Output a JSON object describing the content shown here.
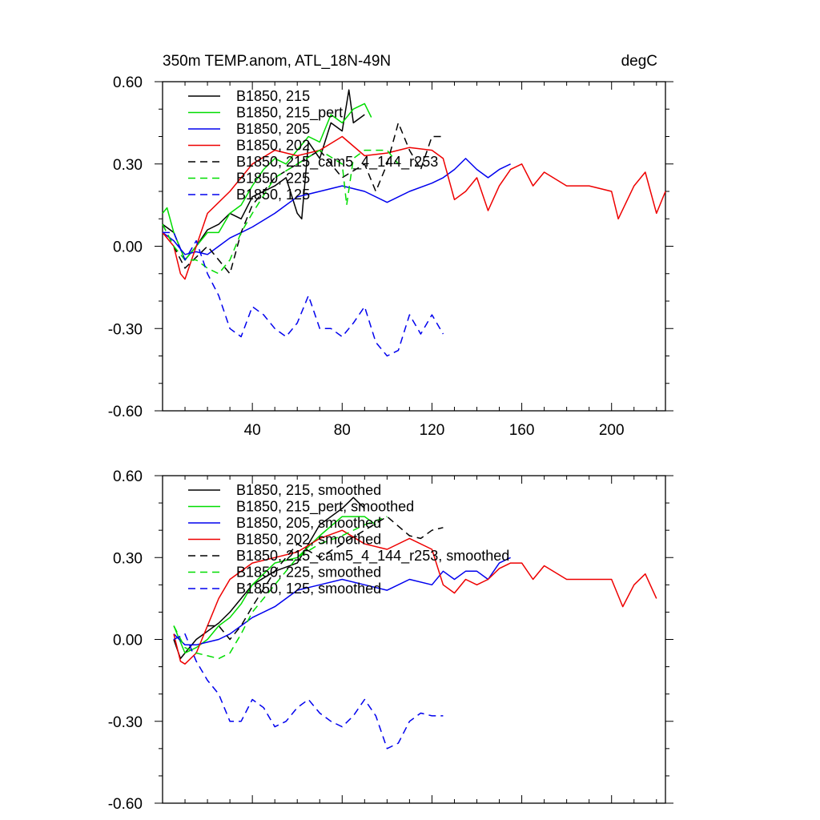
{
  "chart_data": [
    {
      "type": "line",
      "title": "350m TEMP.anom, ATL_18N-49N",
      "units_label": "degC",
      "xlabel": "",
      "ylabel": "",
      "xlim": [
        0,
        224
      ],
      "ylim": [
        -0.6,
        0.6
      ],
      "xticks": [
        40,
        80,
        120,
        160,
        200
      ],
      "xtick_labels": [
        "40",
        "80",
        "120",
        "160",
        "200"
      ],
      "yticks": [
        0.6,
        0.3,
        0.0,
        -0.3,
        -0.6
      ],
      "ytick_labels": [
        "0.60",
        "0.30",
        "0.00",
        "-0.30",
        "-0.60"
      ],
      "grid": false,
      "legend_position": "top-left",
      "series": [
        {
          "name": "B1850, 215",
          "color": "#000000",
          "dash": "solid",
          "x": [
            0,
            5,
            10,
            15,
            20,
            25,
            30,
            35,
            40,
            45,
            50,
            55,
            60,
            62,
            65,
            70,
            75,
            80,
            83,
            85,
            90
          ],
          "y": [
            0.08,
            0.05,
            -0.05,
            0.0,
            0.06,
            0.08,
            0.12,
            0.1,
            0.18,
            0.2,
            0.22,
            0.25,
            0.12,
            0.1,
            0.38,
            0.32,
            0.45,
            0.42,
            0.57,
            0.45,
            0.48
          ]
        },
        {
          "name": "B1850, 215_pert",
          "color": "#00dd00",
          "dash": "solid",
          "x": [
            0,
            2,
            5,
            10,
            15,
            20,
            25,
            30,
            35,
            40,
            45,
            50,
            55,
            60,
            65,
            70,
            75,
            80,
            85,
            90,
            93
          ],
          "y": [
            0.12,
            0.14,
            0.05,
            -0.05,
            0.0,
            0.05,
            0.05,
            0.12,
            0.15,
            0.22,
            0.28,
            0.32,
            0.3,
            0.35,
            0.4,
            0.38,
            0.48,
            0.45,
            0.5,
            0.52,
            0.47
          ]
        },
        {
          "name": "B1850, 205",
          "color": "#0000ee",
          "dash": "solid",
          "x": [
            0,
            5,
            10,
            15,
            20,
            25,
            30,
            35,
            40,
            50,
            60,
            70,
            80,
            90,
            100,
            110,
            120,
            125,
            130,
            135,
            140,
            145,
            150,
            155
          ],
          "y": [
            0.05,
            0.02,
            -0.03,
            -0.02,
            -0.03,
            0.0,
            0.03,
            0.05,
            0.07,
            0.12,
            0.18,
            0.2,
            0.22,
            0.2,
            0.16,
            0.2,
            0.23,
            0.25,
            0.28,
            0.32,
            0.28,
            0.25,
            0.28,
            0.3
          ]
        },
        {
          "name": "B1850, 202",
          "color": "#ee0000",
          "dash": "solid",
          "x": [
            0,
            5,
            8,
            10,
            15,
            20,
            30,
            40,
            50,
            60,
            70,
            80,
            90,
            100,
            110,
            120,
            125,
            130,
            135,
            140,
            145,
            150,
            155,
            160,
            165,
            170,
            180,
            190,
            200,
            203,
            210,
            215,
            220,
            224
          ],
          "y": [
            0.05,
            0.0,
            -0.1,
            -0.12,
            0.0,
            0.12,
            0.2,
            0.3,
            0.35,
            0.33,
            0.35,
            0.4,
            0.33,
            0.34,
            0.36,
            0.35,
            0.32,
            0.17,
            0.2,
            0.25,
            0.13,
            0.22,
            0.28,
            0.3,
            0.22,
            0.27,
            0.22,
            0.22,
            0.2,
            0.1,
            0.22,
            0.27,
            0.12,
            0.2
          ]
        },
        {
          "name": "B1850, 215_cam5_4_144_r253",
          "color": "#000000",
          "dash": "dashed",
          "x": [
            0,
            10,
            20,
            25,
            30,
            35,
            40,
            50,
            60,
            70,
            80,
            90,
            95,
            100,
            105,
            110,
            115,
            120,
            125
          ],
          "y": [
            0.08,
            -0.08,
            0.0,
            -0.05,
            -0.1,
            0.05,
            0.15,
            0.25,
            0.3,
            0.35,
            0.25,
            0.3,
            0.2,
            0.3,
            0.45,
            0.35,
            0.28,
            0.4,
            0.4
          ]
        },
        {
          "name": "B1850, 225",
          "color": "#00dd00",
          "dash": "dashed",
          "x": [
            0,
            5,
            10,
            15,
            20,
            25,
            30,
            35,
            40,
            50,
            60,
            70,
            80,
            82,
            85,
            90,
            95,
            100,
            105
          ],
          "y": [
            0.08,
            0.0,
            -0.05,
            -0.05,
            -0.08,
            -0.1,
            -0.05,
            0.05,
            0.12,
            0.25,
            0.3,
            0.35,
            0.3,
            0.15,
            0.32,
            0.35,
            0.35,
            0.35,
            0.3
          ]
        },
        {
          "name": "B1850, 125",
          "color": "#0000ee",
          "dash": "dashed",
          "x": [
            0,
            5,
            10,
            15,
            20,
            25,
            30,
            35,
            40,
            45,
            50,
            55,
            60,
            65,
            70,
            75,
            80,
            85,
            90,
            95,
            100,
            105,
            110,
            115,
            120,
            125
          ],
          "y": [
            0.05,
            0.05,
            -0.05,
            0.02,
            -0.1,
            -0.18,
            -0.3,
            -0.33,
            -0.22,
            -0.25,
            -0.3,
            -0.33,
            -0.28,
            -0.18,
            -0.3,
            -0.3,
            -0.33,
            -0.28,
            -0.22,
            -0.35,
            -0.4,
            -0.38,
            -0.25,
            -0.32,
            -0.25,
            -0.32
          ]
        }
      ]
    },
    {
      "type": "line",
      "title": "",
      "xlabel": "",
      "ylabel": "",
      "xlim": [
        0,
        224
      ],
      "ylim": [
        -0.6,
        0.6
      ],
      "xticks": [
        40,
        80,
        120,
        160,
        200
      ],
      "xtick_labels": [],
      "yticks": [
        0.6,
        0.3,
        0.0,
        -0.3,
        -0.6
      ],
      "ytick_labels": [
        "0.60",
        "0.30",
        "0.00",
        "-0.30",
        "-0.60"
      ],
      "grid": false,
      "legend_position": "top-left",
      "series": [
        {
          "name": "B1850, 215, smoothed",
          "color": "#000000",
          "dash": "solid",
          "x": [
            5,
            8,
            10,
            15,
            20,
            25,
            30,
            35,
            40,
            50,
            60,
            70,
            80,
            85,
            90
          ],
          "y": [
            0.0,
            -0.07,
            -0.05,
            0.0,
            0.03,
            0.06,
            0.1,
            0.15,
            0.2,
            0.25,
            0.28,
            0.42,
            0.48,
            0.52,
            0.48
          ]
        },
        {
          "name": "B1850, 215_pert, smoothed",
          "color": "#00dd00",
          "dash": "solid",
          "x": [
            5,
            10,
            15,
            20,
            25,
            30,
            35,
            40,
            50,
            60,
            70,
            80,
            90,
            95
          ],
          "y": [
            0.05,
            -0.05,
            -0.03,
            0.0,
            0.05,
            0.08,
            0.13,
            0.2,
            0.28,
            0.3,
            0.38,
            0.45,
            0.45,
            0.42
          ]
        },
        {
          "name": "B1850, 205, smoothed",
          "color": "#0000ee",
          "dash": "solid",
          "x": [
            5,
            10,
            15,
            20,
            25,
            30,
            35,
            40,
            50,
            60,
            70,
            80,
            90,
            100,
            110,
            120,
            125,
            130,
            135,
            140,
            145,
            150,
            155
          ],
          "y": [
            0.02,
            -0.02,
            -0.02,
            -0.01,
            0.0,
            0.02,
            0.05,
            0.08,
            0.12,
            0.18,
            0.2,
            0.22,
            0.2,
            0.18,
            0.22,
            0.2,
            0.25,
            0.22,
            0.25,
            0.25,
            0.22,
            0.28,
            0.3
          ]
        },
        {
          "name": "B1850, 202, smoothed",
          "color": "#ee0000",
          "dash": "solid",
          "x": [
            5,
            8,
            10,
            15,
            20,
            25,
            30,
            40,
            50,
            60,
            70,
            80,
            90,
            100,
            110,
            120,
            125,
            130,
            135,
            140,
            145,
            150,
            155,
            160,
            165,
            170,
            180,
            190,
            200,
            205,
            210,
            215,
            220
          ],
          "y": [
            0.02,
            -0.08,
            -0.09,
            -0.05,
            0.05,
            0.15,
            0.22,
            0.28,
            0.3,
            0.32,
            0.37,
            0.4,
            0.35,
            0.33,
            0.37,
            0.33,
            0.2,
            0.17,
            0.22,
            0.2,
            0.22,
            0.26,
            0.28,
            0.28,
            0.22,
            0.27,
            0.22,
            0.22,
            0.22,
            0.12,
            0.2,
            0.24,
            0.15
          ]
        },
        {
          "name": "B1850, 215_cam5_4_144_r253, smoothed",
          "color": "#000000",
          "dash": "dashed",
          "x": [
            20,
            25,
            30,
            35,
            40,
            50,
            60,
            70,
            80,
            90,
            100,
            110,
            115,
            120,
            125
          ],
          "y": [
            0.05,
            0.05,
            0.0,
            0.05,
            0.12,
            0.25,
            0.35,
            0.3,
            0.35,
            0.4,
            0.45,
            0.38,
            0.37,
            0.4,
            0.41
          ]
        },
        {
          "name": "B1850, 225, smoothed",
          "color": "#00dd00",
          "dash": "dashed",
          "x": [
            5,
            10,
            15,
            20,
            25,
            30,
            35,
            40,
            50,
            60,
            70,
            80,
            90,
            100
          ],
          "y": [
            0.05,
            -0.03,
            -0.05,
            -0.06,
            -0.07,
            -0.05,
            0.02,
            0.1,
            0.2,
            0.3,
            0.35,
            0.38,
            0.42,
            0.45
          ]
        },
        {
          "name": "B1850, 125, smoothed",
          "color": "#0000ee",
          "dash": "dashed",
          "x": [
            5,
            10,
            15,
            20,
            25,
            30,
            35,
            40,
            45,
            50,
            55,
            60,
            65,
            70,
            75,
            80,
            85,
            90,
            95,
            100,
            105,
            110,
            115,
            120,
            125
          ],
          "y": [
            0.0,
            0.02,
            -0.08,
            -0.15,
            -0.2,
            -0.3,
            -0.3,
            -0.22,
            -0.25,
            -0.32,
            -0.3,
            -0.25,
            -0.22,
            -0.27,
            -0.3,
            -0.32,
            -0.28,
            -0.22,
            -0.28,
            -0.4,
            -0.38,
            -0.3,
            -0.27,
            -0.28,
            -0.28
          ]
        }
      ]
    }
  ]
}
